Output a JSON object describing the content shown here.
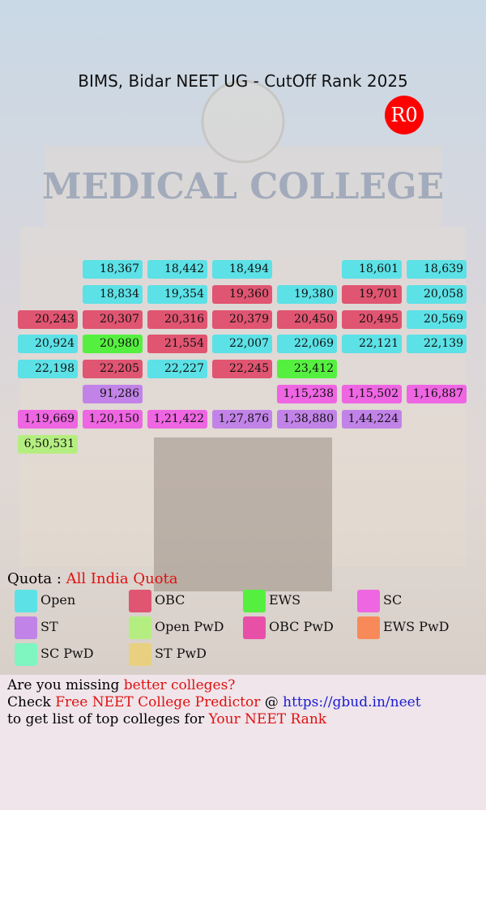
{
  "header": {
    "title": "BIMS, Bidar NEET UG - CutOff Rank 2025",
    "badge": "R0"
  },
  "grid": {
    "rows": [
      [
        null,
        {
          "rank": "18,367",
          "color": "#5ce1e6"
        },
        {
          "rank": "18,442",
          "color": "#5ce1e6"
        },
        {
          "rank": "18,494",
          "color": "#5ce1e6"
        },
        null,
        {
          "rank": "18,601",
          "color": "#5ce1e6"
        },
        {
          "rank": "18,639",
          "color": "#5ce1e6"
        }
      ],
      [
        null,
        {
          "rank": "18,834",
          "color": "#5ce1e6"
        },
        {
          "rank": "19,354",
          "color": "#5ce1e6"
        },
        {
          "rank": "19,360",
          "color": "#e05571"
        },
        {
          "rank": "19,380",
          "color": "#5ce1e6"
        },
        {
          "rank": "19,701",
          "color": "#e05571"
        },
        {
          "rank": "20,058",
          "color": "#5ce1e6"
        }
      ],
      [
        {
          "rank": "20,243",
          "color": "#e05571"
        },
        {
          "rank": "20,307",
          "color": "#e05571"
        },
        {
          "rank": "20,316",
          "color": "#e05571"
        },
        {
          "rank": "20,379",
          "color": "#e05571"
        },
        {
          "rank": "20,450",
          "color": "#e05571"
        },
        {
          "rank": "20,495",
          "color": "#e05571"
        },
        {
          "rank": "20,569",
          "color": "#5ce1e6"
        }
      ],
      [
        {
          "rank": "20,924",
          "color": "#5ce1e6"
        },
        {
          "rank": "20,980",
          "color": "#55f03f"
        },
        {
          "rank": "21,554",
          "color": "#e05571"
        },
        {
          "rank": "22,007",
          "color": "#5ce1e6"
        },
        {
          "rank": "22,069",
          "color": "#5ce1e6"
        },
        {
          "rank": "22,121",
          "color": "#5ce1e6"
        },
        {
          "rank": "22,139",
          "color": "#5ce1e6"
        }
      ],
      [
        {
          "rank": "22,198",
          "color": "#5ce1e6"
        },
        {
          "rank": "22,205",
          "color": "#e05571"
        },
        {
          "rank": "22,227",
          "color": "#5ce1e6"
        },
        {
          "rank": "22,245",
          "color": "#e05571"
        },
        {
          "rank": "23,412",
          "color": "#55f03f"
        },
        null,
        null
      ],
      [
        null,
        {
          "rank": "91,286",
          "color": "#c283e8"
        },
        null,
        null,
        {
          "rank": "1,15,238",
          "color": "#ee66e2"
        },
        {
          "rank": "1,15,502",
          "color": "#ee66e2"
        },
        {
          "rank": "1,16,887",
          "color": "#ee66e2"
        }
      ],
      [
        {
          "rank": "1,19,669",
          "color": "#ee66e2"
        },
        {
          "rank": "1,20,150",
          "color": "#ee66e2"
        },
        {
          "rank": "1,21,422",
          "color": "#ee66e2"
        },
        {
          "rank": "1,27,876",
          "color": "#c283e8"
        },
        {
          "rank": "1,38,880",
          "color": "#c283e8"
        },
        {
          "rank": "1,44,224",
          "color": "#c283e8"
        },
        null
      ],
      [
        {
          "rank": "6,50,531",
          "color": "#b5ee80"
        },
        null,
        null,
        null,
        null,
        null,
        null
      ]
    ]
  },
  "quota": {
    "label": "Quota :",
    "value": "All India Quota"
  },
  "legend": [
    {
      "name": "Open",
      "color": "#5ce1e6"
    },
    {
      "name": "OBC",
      "color": "#e05571"
    },
    {
      "name": "EWS",
      "color": "#55f03f"
    },
    {
      "name": "SC",
      "color": "#ee66e2"
    },
    {
      "name": "ST",
      "color": "#c283e8"
    },
    {
      "name": "Open PwD",
      "color": "#b5ee80"
    },
    {
      "name": "OBC PwD",
      "color": "#e850a8"
    },
    {
      "name": "EWS PwD",
      "color": "#f88a5a"
    },
    {
      "name": "SC PwD",
      "color": "#7ff5c0"
    },
    {
      "name": "ST PwD",
      "color": "#e8d080"
    }
  ],
  "footer": {
    "lines": [
      [
        {
          "text": "Are you missing ",
          "color": "#000000"
        },
        {
          "text": "better colleges?",
          "color": "#e01010"
        }
      ],
      [
        {
          "text": "Check ",
          "color": "#000000"
        },
        {
          "text": "Free NEET College Predictor",
          "color": "#e01010"
        },
        {
          "text": " @ ",
          "color": "#000000"
        },
        {
          "text": "https://gbud.in/neet",
          "color": "#1a1ad0"
        }
      ],
      [
        {
          "text": "to get list of top colleges for ",
          "color": "#000000"
        },
        {
          "text": "Your NEET Rank",
          "color": "#e01010"
        }
      ]
    ]
  }
}
